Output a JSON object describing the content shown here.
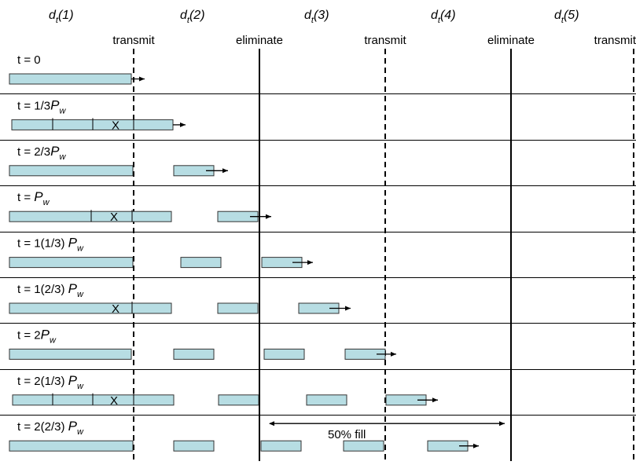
{
  "header": {
    "channels": [
      {
        "label": "d",
        "sub": "t",
        "paren": "(1)"
      },
      {
        "label": "d",
        "sub": "t",
        "paren": "(2)"
      },
      {
        "label": "d",
        "sub": "t",
        "paren": "(3)"
      },
      {
        "label": "d",
        "sub": "t",
        "paren": "(4)"
      },
      {
        "label": "d",
        "sub": "t",
        "paren": "(5)"
      }
    ],
    "boundary_labels": [
      "transmit",
      "eliminate",
      "transmit",
      "eliminate",
      "transmit"
    ],
    "boundary_styles": [
      "dashed",
      "solid",
      "dashed",
      "solid",
      "dashed"
    ]
  },
  "rows": [
    {
      "label": {
        "pre": "t = 0",
        "p": "",
        "sub": ""
      }
    },
    {
      "label": {
        "pre": "t = 1/3",
        "p": "P",
        "sub": "w"
      }
    },
    {
      "label": {
        "pre": "t = 2/3",
        "p": "P",
        "sub": "w"
      }
    },
    {
      "label": {
        "pre": "t = ",
        "p": "P",
        "sub": "w"
      }
    },
    {
      "label": {
        "pre": "t = 1(1/3) ",
        "p": "P",
        "sub": "w"
      }
    },
    {
      "label": {
        "pre": "t = 1(2/3) ",
        "p": "P",
        "sub": "w"
      }
    },
    {
      "label": {
        "pre": "t = 2",
        "p": "P",
        "sub": "w"
      }
    },
    {
      "label": {
        "pre": "t = 2(1/3) ",
        "p": "P",
        "sub": "w"
      }
    },
    {
      "label": {
        "pre": "t = 2(2/3) ",
        "p": "P",
        "sub": "w"
      }
    }
  ],
  "x_mark": "X",
  "fill_annotation": "50% fill",
  "colors": {
    "box_fill": "#b7dde3",
    "box_stroke": "#333333",
    "line": "#000000"
  }
}
